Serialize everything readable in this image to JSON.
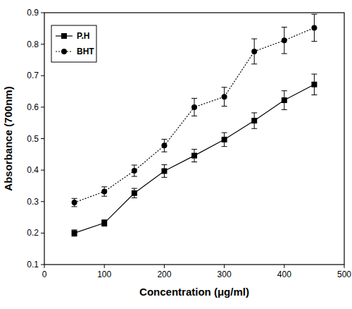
{
  "chart_data": {
    "type": "line",
    "x_label": "Concentration (μg/ml)",
    "y_label": "Absorbance (700nm)",
    "x": [
      50,
      100,
      150,
      200,
      250,
      300,
      350,
      400,
      450
    ],
    "series": [
      {
        "name": "P.H",
        "color": "#000000",
        "marker": "square",
        "line_style": "solid",
        "values": [
          0.2,
          0.232,
          0.327,
          0.397,
          0.446,
          0.497,
          0.557,
          0.622,
          0.672
        ],
        "errors": [
          0.01,
          0.01,
          0.015,
          0.02,
          0.02,
          0.022,
          0.025,
          0.03,
          0.033
        ]
      },
      {
        "name": "BHT",
        "color": "#000000",
        "marker": "circle",
        "line_style": "dotted",
        "values": [
          0.297,
          0.332,
          0.398,
          0.478,
          0.6,
          0.633,
          0.777,
          0.812,
          0.852
        ],
        "errors": [
          0.013,
          0.015,
          0.018,
          0.02,
          0.028,
          0.03,
          0.04,
          0.042,
          0.043
        ]
      }
    ],
    "xlim": [
      0,
      500
    ],
    "xticks": [
      0,
      100,
      200,
      300,
      400,
      500
    ],
    "ylim": [
      0.1,
      0.9
    ],
    "yticks": [
      0.1,
      0.2,
      0.3,
      0.4,
      0.5,
      0.6,
      0.7,
      0.8,
      0.9
    ],
    "legend": "top-left",
    "grid": false
  }
}
